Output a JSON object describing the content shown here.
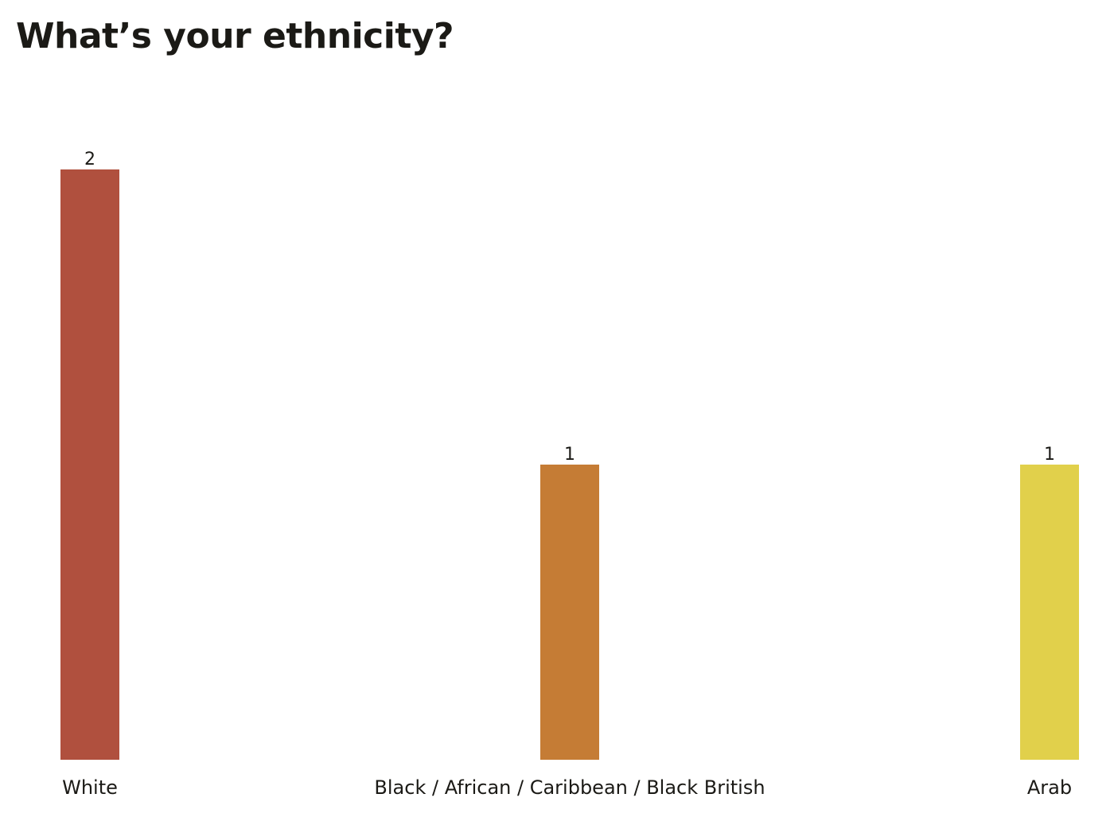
{
  "chart_data": {
    "type": "bar",
    "title": "What’s your ethnicity?",
    "categories": [
      "White",
      "Black / African / Caribbean / Black British",
      "Arab"
    ],
    "values": [
      2,
      1,
      1
    ],
    "colors": [
      "#b0503e",
      "#c57c35",
      "#e1d04b"
    ],
    "ylim": [
      0,
      2
    ],
    "grid": false,
    "axes_visible": false,
    "data_labels": true
  }
}
